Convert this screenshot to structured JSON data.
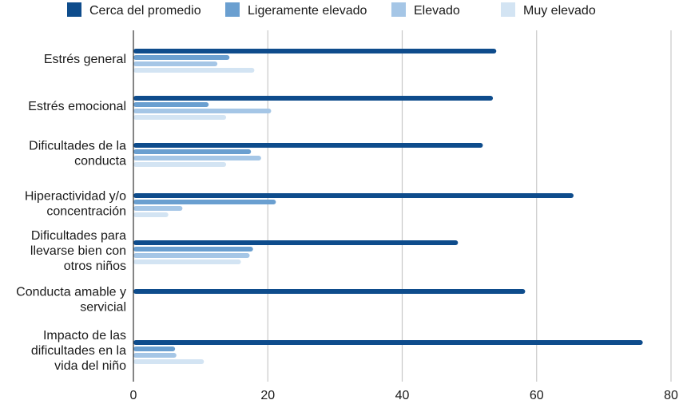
{
  "chart_data": {
    "type": "bar",
    "orientation": "horizontal",
    "categories": [
      "Estrés general",
      "Estrés emocional",
      "Dificultades de la conducta",
      "Hiperactividad y/o concentración",
      "Dificultades para llevarse bien con otros niños",
      "Conducta amable y servicial",
      "Impacto de las dificultades en la vida del niño"
    ],
    "category_lines": [
      [
        "Estrés general"
      ],
      [
        "Estrés emocional"
      ],
      [
        "Dificultades de la",
        "conducta"
      ],
      [
        "Hiperactividad y/o",
        "concentración"
      ],
      [
        "Dificultades para",
        "llevarse bien con",
        "otros niños"
      ],
      [
        "Conducta amable y",
        "servicial"
      ],
      [
        "Impacto de las",
        "dificultades en la",
        "vida del niño"
      ]
    ],
    "series": [
      {
        "name": "Cerca del promedio",
        "color": "#0e4c8c",
        "values": [
          54,
          53.5,
          52,
          65.5,
          48.3,
          58.3,
          75.8
        ]
      },
      {
        "name": "Ligeramente elevado",
        "color": "#6a9fd0",
        "values": [
          14.3,
          11.2,
          17.5,
          21.2,
          17.8,
          0,
          6.2
        ]
      },
      {
        "name": "Elevado",
        "color": "#a5c6e6",
        "values": [
          12.5,
          20.5,
          19,
          7.3,
          17.3,
          0,
          6.4
        ]
      },
      {
        "name": "Muy elevado",
        "color": "#d3e4f3",
        "values": [
          18,
          13.8,
          13.8,
          5.2,
          16,
          0,
          10.5
        ]
      }
    ],
    "xlim": [
      0,
      80
    ],
    "xticks": [
      0,
      20,
      40,
      60,
      80
    ],
    "grid": "vertical",
    "legend": "top",
    "title": "",
    "xlabel": "",
    "ylabel": ""
  }
}
